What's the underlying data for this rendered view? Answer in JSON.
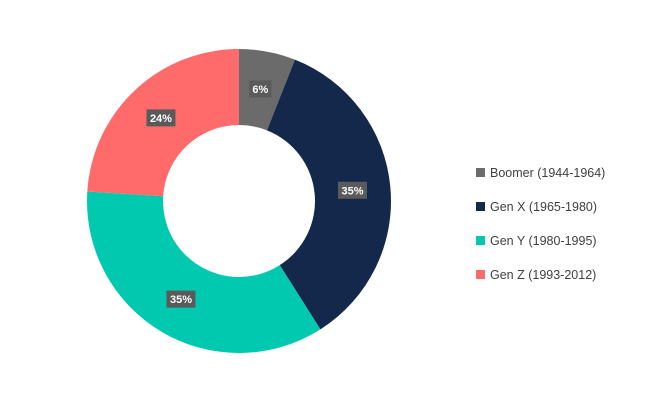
{
  "chart_data": {
    "type": "pie",
    "subtype": "donut",
    "title": "",
    "categories": [
      "Boomer (1944-1964)",
      "Gen X (1965-1980)",
      "Gen Y (1980-1995)",
      "Gen Z (1993-2012)"
    ],
    "values": [
      6,
      35,
      35,
      24
    ],
    "data_labels": [
      "6%",
      "35%",
      "35%",
      "24%"
    ],
    "colors": [
      "#6b6b6b",
      "#14284b",
      "#00c9b0",
      "#ff6b6b"
    ],
    "legend_position": "right",
    "start_angle_deg": 0,
    "direction": "clockwise"
  }
}
